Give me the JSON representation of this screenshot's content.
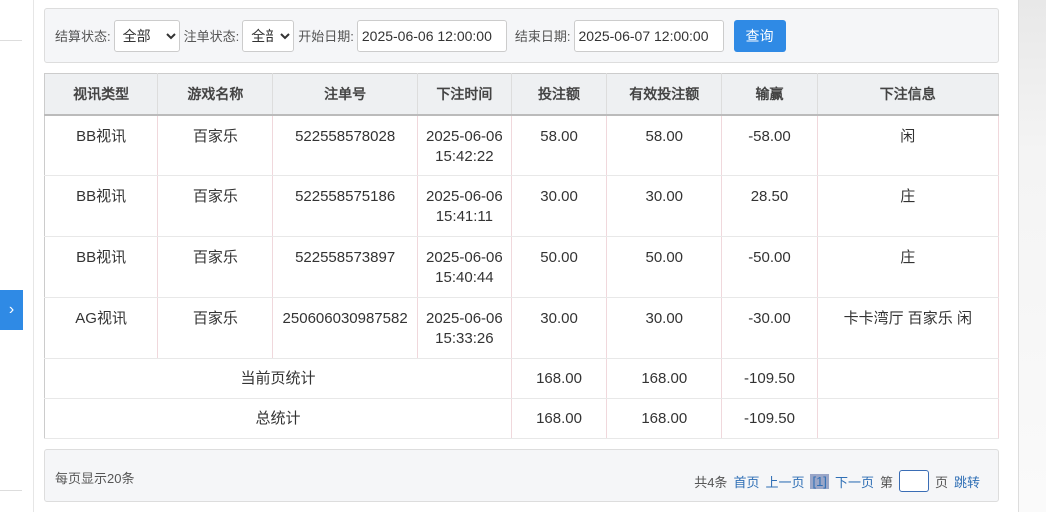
{
  "filter": {
    "settle_label": "结算状态:",
    "settle_value": "全部",
    "bet_label": "注单状态:",
    "bet_value": "全部",
    "start_label": "开始日期:",
    "start_value": "2025-06-06 12:00:00",
    "end_label": "结束日期:",
    "end_value": "2025-06-07 12:00:00",
    "query": "查询"
  },
  "table": {
    "headers": [
      "视讯类型",
      "游戏名称",
      "注单号",
      "下注时间",
      "投注额",
      "有效投注额",
      "输赢",
      "下注信息"
    ],
    "rows": [
      [
        "BB视讯",
        "百家乐",
        "522558578028",
        "2025-06-06 15:42:22",
        "58.00",
        "58.00",
        "-58.00",
        "闲"
      ],
      [
        "BB视讯",
        "百家乐",
        "522558575186",
        "2025-06-06 15:41:11",
        "30.00",
        "30.00",
        "28.50",
        "庄"
      ],
      [
        "BB视讯",
        "百家乐",
        "522558573897",
        "2025-06-06 15:40:44",
        "50.00",
        "50.00",
        "-50.00",
        "庄"
      ],
      [
        "AG视讯",
        "百家乐",
        "250606030987582",
        "2025-06-06 15:33:26",
        "30.00",
        "30.00",
        "-30.00",
        "卡卡湾厅 百家乐 闲"
      ]
    ],
    "page_total": {
      "label": "当前页统计",
      "bet": "168.00",
      "valid": "168.00",
      "win": "-109.50"
    },
    "total": {
      "label": "总统计",
      "bet": "168.00",
      "valid": "168.00",
      "win": "-109.50"
    }
  },
  "pager": {
    "per_page": "每页显示20条",
    "count": "共4条",
    "first": "首页",
    "prev": "上一页",
    "current": "[1]",
    "next": "下一页",
    "page_prefix": "第",
    "page_suffix": "页",
    "jump": "跳转"
  }
}
